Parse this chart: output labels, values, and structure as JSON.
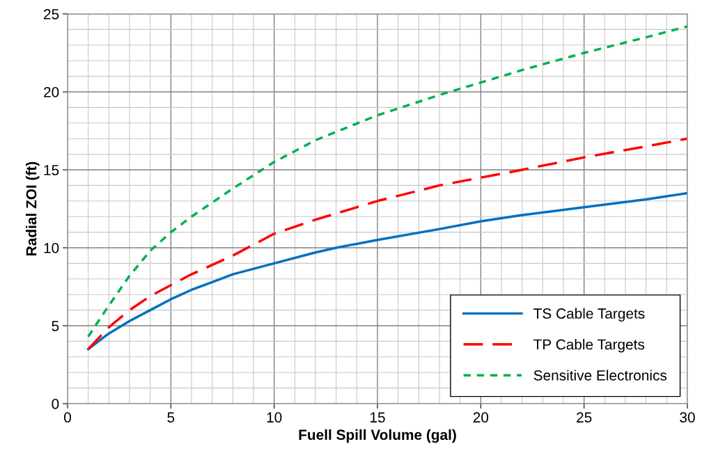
{
  "chart_data": {
    "type": "line",
    "xlabel": "Fuell Spill Volume (gal)",
    "ylabel": "Radial ZOI (ft)",
    "xlim": [
      0,
      30
    ],
    "xticks": [
      0,
      5,
      10,
      15,
      20,
      25,
      30
    ],
    "ylim": [
      0,
      25
    ],
    "yticks": [
      0,
      5,
      10,
      15,
      20,
      25
    ],
    "grid": true,
    "legend": "bottom right",
    "marker": "none",
    "series": [
      {
        "name": "TS Cable Targets",
        "color": "#0070c0",
        "line_style": "solid",
        "x": [
          1,
          2,
          3,
          4,
          5,
          6,
          7,
          8,
          10,
          12,
          13,
          15,
          18,
          20,
          22,
          25,
          28,
          30
        ],
        "values": [
          3.5,
          4.5,
          5.3,
          6.0,
          6.7,
          7.3,
          7.8,
          8.3,
          9.0,
          9.7,
          10.0,
          10.5,
          11.2,
          11.7,
          12.1,
          12.6,
          13.1,
          13.5
        ]
      },
      {
        "name": "TP Cable Targets",
        "color": "#ff0000",
        "line_style": "dashed",
        "x": [
          1,
          2,
          3,
          4,
          5,
          6,
          7,
          8,
          10,
          12,
          15,
          18,
          20,
          22,
          25,
          28,
          30
        ],
        "values": [
          3.5,
          4.9,
          6.0,
          6.9,
          7.6,
          8.3,
          8.9,
          9.5,
          10.9,
          11.8,
          13.0,
          14.0,
          14.5,
          15.0,
          15.8,
          16.5,
          17.0
        ]
      },
      {
        "name": "Sensitive Electronics",
        "color": "#00b050",
        "line_style": "dotted",
        "x": [
          1,
          2,
          3,
          4,
          5,
          6,
          7,
          8,
          10,
          12,
          15,
          18,
          20,
          22,
          25,
          28,
          30
        ],
        "values": [
          4.3,
          6.3,
          8.2,
          9.8,
          11.0,
          12.0,
          12.9,
          13.8,
          15.5,
          16.9,
          18.5,
          19.8,
          20.6,
          21.4,
          22.5,
          23.5,
          24.2
        ]
      }
    ]
  }
}
